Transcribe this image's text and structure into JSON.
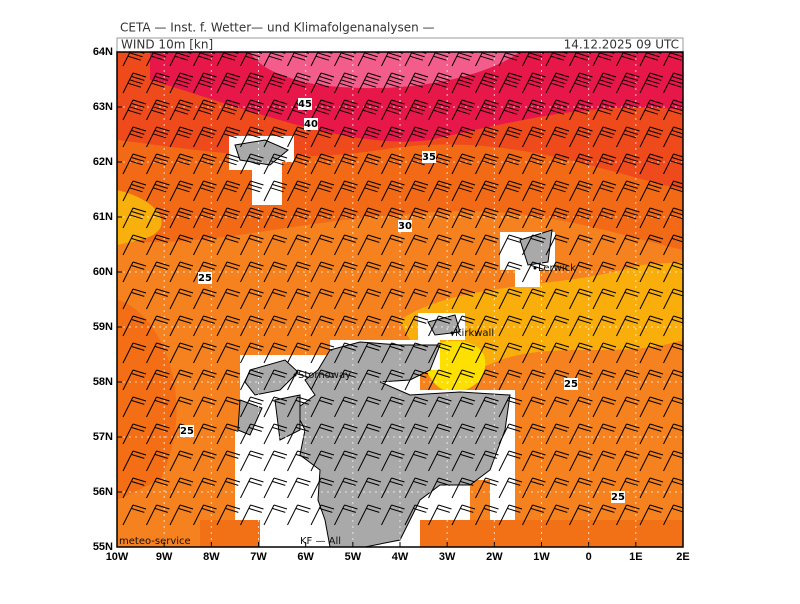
{
  "header": {
    "institute": "CETA — Inst. f. Wetter— und Klimafolgenanalysen —",
    "field": "WIND 10m [kn]",
    "valid_time": "14.12.2025 09 UTC"
  },
  "map": {
    "lat_labels": [
      "55N",
      "56N",
      "57N",
      "58N",
      "59N",
      "60N",
      "61N",
      "62N",
      "63N",
      "64N"
    ],
    "lon_labels": [
      "10W",
      "9W",
      "8W",
      "7W",
      "6W",
      "5W",
      "4W",
      "3W",
      "2W",
      "1W",
      "0",
      "1E",
      "2E"
    ],
    "contour_labels": [
      45,
      40,
      35,
      30,
      25,
      25,
      25,
      25
    ],
    "places": [
      "Lerwick",
      "Kirkwall",
      "Stornoway"
    ]
  },
  "footer": {
    "left": "meteo-service",
    "center": "KF — All"
  }
}
